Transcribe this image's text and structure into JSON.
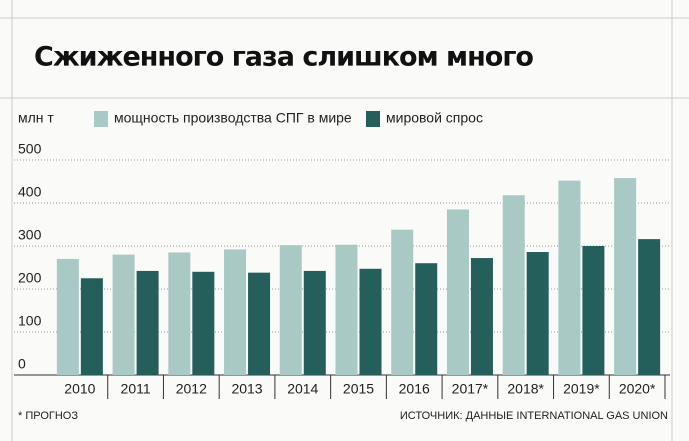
{
  "chart_data": {
    "type": "bar",
    "title": "Сжиженного газа слишком много",
    "y_label": "млн т",
    "categories": [
      "2010",
      "2011",
      "2012",
      "2013",
      "2014",
      "2015",
      "2016",
      "2017*",
      "2018*",
      "2019*",
      "2020*"
    ],
    "series": [
      {
        "name": "мощность производства СПГ в мире",
        "color": "#a9c9c5",
        "values": [
          270,
          280,
          285,
          292,
          302,
          303,
          338,
          385,
          418,
          452,
          458
        ]
      },
      {
        "name": "мировой спрос",
        "color": "#245f5b",
        "values": [
          225,
          242,
          240,
          238,
          242,
          247,
          260,
          272,
          286,
          300,
          316
        ]
      }
    ],
    "ylim": [
      0,
      500
    ],
    "yticks": [
      0,
      100,
      200,
      300,
      400,
      500
    ],
    "grid": true,
    "footnote": "* ПРОГНОЗ",
    "source": "ИСТОЧНИК: ДАННЫЕ INTERNATIONAL GAS UNION"
  }
}
